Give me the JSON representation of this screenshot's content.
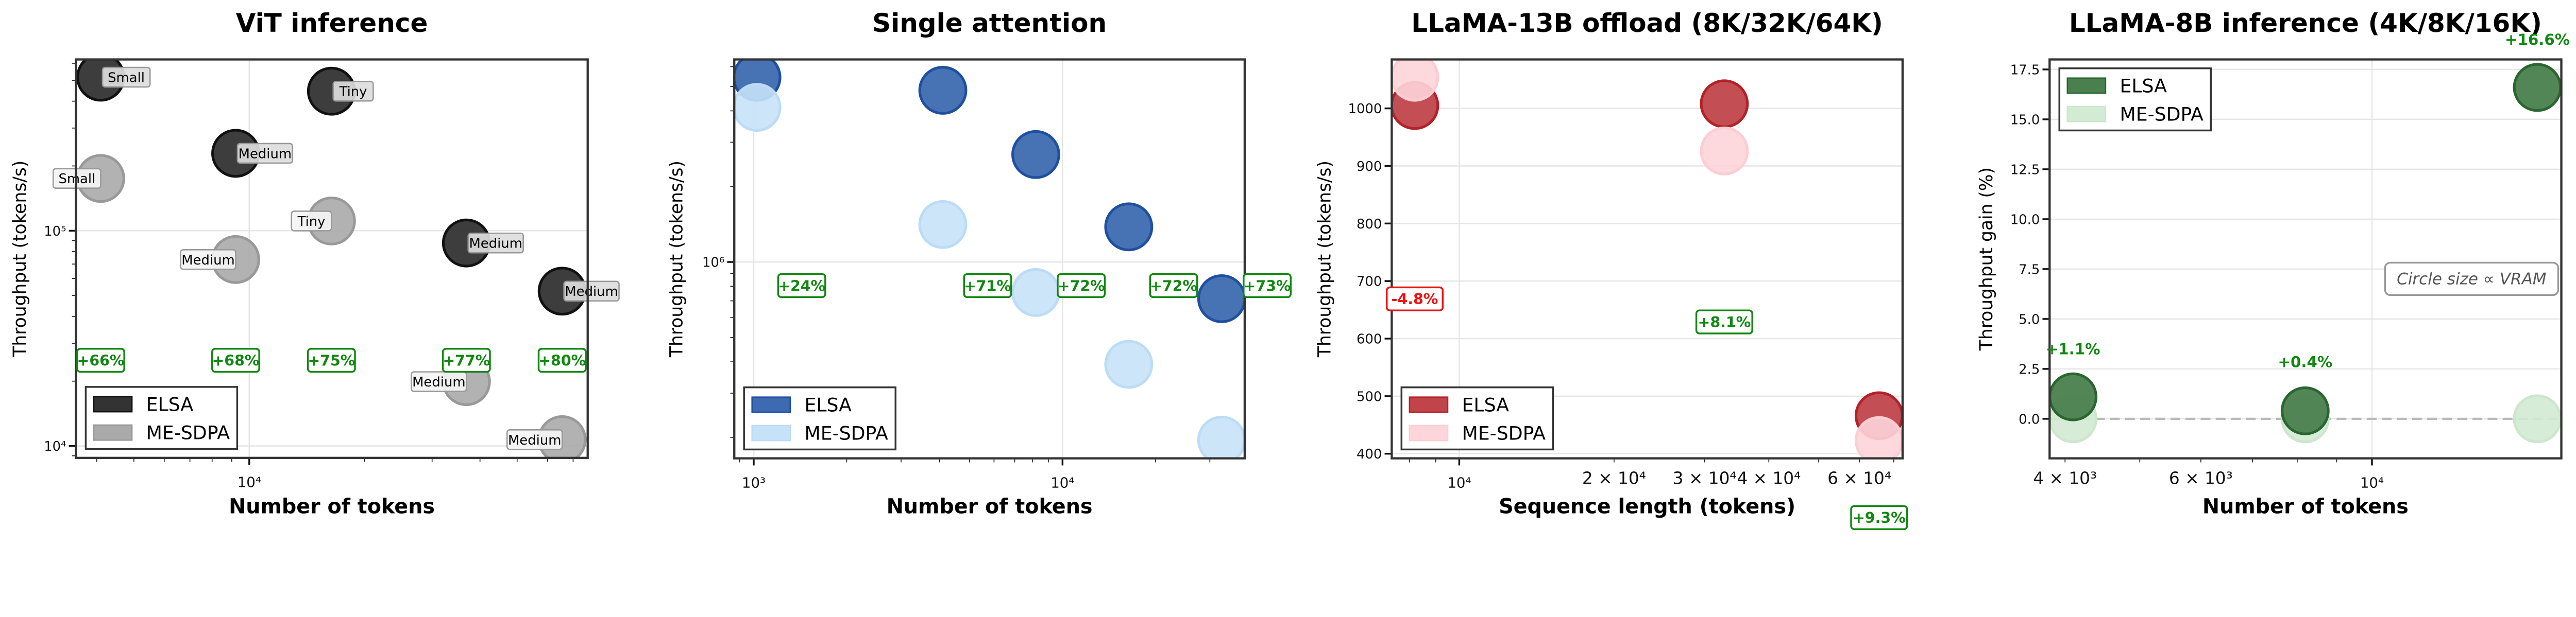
{
  "chart_data": [
    {
      "type": "scatter",
      "title": "ViT inference",
      "xlabel": "Number of tokens",
      "ylabel": "Throughput (tokens/s)",
      "xscale": "log",
      "yscale": "log",
      "xlim": [
        3530,
        76400
      ],
      "ylim": [
        8800,
        625000
      ],
      "grid": true,
      "legend": "lower-left",
      "xticks": [
        {
          "value": 10000,
          "label": "10⁴"
        }
      ],
      "yticks": [
        {
          "value": 10000,
          "label": "10⁴"
        },
        {
          "value": 100000,
          "label": "10⁵"
        }
      ],
      "series": [
        {
          "name": "ELSA",
          "color": "#333333",
          "edge": "#111111",
          "points": [
            {
              "x": 4096,
              "y": 517000,
              "label": "Small"
            },
            {
              "x": 16384,
              "y": 445000,
              "label": "Tiny"
            },
            {
              "x": 9216,
              "y": 229000,
              "label": "Medium"
            },
            {
              "x": 36864,
              "y": 87700,
              "label": "Medium"
            },
            {
              "x": 65536,
              "y": 52400,
              "label": "Medium"
            }
          ]
        },
        {
          "name": "ME-SDPA",
          "color": "#aaaaaa",
          "edge": "#999999",
          "points": [
            {
              "x": 4096,
              "y": 175000,
              "label": "Small"
            },
            {
              "x": 16384,
              "y": 111000,
              "label": "Tiny"
            },
            {
              "x": 9216,
              "y": 73500,
              "label": "Medium"
            },
            {
              "x": 36864,
              "y": 19900,
              "label": "Medium"
            },
            {
              "x": 65536,
              "y": 10700,
              "label": "Medium"
            }
          ]
        }
      ],
      "annotations": [
        {
          "text": "+66%",
          "x": 4096,
          "y": 25000,
          "color": "#118811",
          "boxed": true
        },
        {
          "text": "+68%",
          "x": 9216,
          "y": 25000,
          "color": "#118811",
          "boxed": true
        },
        {
          "text": "+75%",
          "x": 16384,
          "y": 25000,
          "color": "#118811",
          "boxed": true
        },
        {
          "text": "+77%",
          "x": 36864,
          "y": 25000,
          "color": "#118811",
          "boxed": true
        },
        {
          "text": "+80%",
          "x": 65536,
          "y": 25000,
          "color": "#118811",
          "boxed": true
        }
      ]
    },
    {
      "type": "scatter",
      "title": "Single attention",
      "xlabel": "Number of tokens",
      "ylabel": "Throughput (tokens/s)",
      "xscale": "log",
      "yscale": "log",
      "xlim": [
        865,
        38900
      ],
      "ylim": [
        165000,
        6410000
      ],
      "grid": true,
      "legend": "lower-left",
      "xticks": [
        {
          "value": 1000,
          "label": "10³"
        },
        {
          "value": 10000,
          "label": "10⁴"
        }
      ],
      "yticks": [
        {
          "value": 1000000,
          "label": "10⁶"
        }
      ],
      "series": [
        {
          "name": "ELSA",
          "color": "#3d6ab0",
          "edge": "#1f4fa0",
          "points": [
            {
              "x": 1024,
              "y": 5440000
            },
            {
              "x": 4096,
              "y": 4830000
            },
            {
              "x": 8192,
              "y": 2680000
            },
            {
              "x": 16384,
              "y": 1380000
            },
            {
              "x": 32768,
              "y": 714000
            }
          ]
        },
        {
          "name": "ME-SDPA",
          "color": "#c6e2f8",
          "edge": "#bcdcf6",
          "points": [
            {
              "x": 1024,
              "y": 4130000
            },
            {
              "x": 4096,
              "y": 1410000
            },
            {
              "x": 8192,
              "y": 756000
            },
            {
              "x": 16384,
              "y": 391000
            },
            {
              "x": 32768,
              "y": 195000
            }
          ]
        }
      ],
      "annotations": [
        {
          "text": "+24%",
          "x": 1430,
          "y": 805000,
          "color": "#118811",
          "boxed": true
        },
        {
          "text": "+71%",
          "x": 5720,
          "y": 805000,
          "color": "#118811",
          "boxed": true
        },
        {
          "text": "+72%",
          "x": 11500,
          "y": 805000,
          "color": "#118811",
          "boxed": true
        },
        {
          "text": "+72%",
          "x": 22900,
          "y": 805000,
          "color": "#118811",
          "boxed": true
        },
        {
          "text": "+73%",
          "x": 46000,
          "y": 805000,
          "color": "#118811",
          "boxed": true
        }
      ]
    },
    {
      "type": "scatter",
      "title": "LLaMA-13B offload (8K/32K/64K)",
      "xlabel": "Sequence length (tokens)",
      "ylabel": "Throughput (tokens/s)",
      "xscale": "log",
      "yscale": "linear",
      "xlim": [
        7390,
        72800
      ],
      "ylim": [
        392,
        1085
      ],
      "grid": true,
      "legend": "lower-left",
      "xticks": [
        {
          "value": 10000,
          "label": "10⁴"
        },
        {
          "value": 20000,
          "label": "2 × 10⁴",
          "minor": true
        },
        {
          "value": 30000,
          "label": "3 × 10⁴",
          "minor": true
        },
        {
          "value": 40000,
          "label": "4 × 10⁴",
          "minor": true
        },
        {
          "value": 60000,
          "label": "6 × 10⁴",
          "minor": true
        }
      ],
      "yticks": [
        {
          "value": 400,
          "label": "400"
        },
        {
          "value": 500,
          "label": "500"
        },
        {
          "value": 600,
          "label": "600"
        },
        {
          "value": 700,
          "label": "700"
        },
        {
          "value": 800,
          "label": "800"
        },
        {
          "value": 900,
          "label": "900"
        },
        {
          "value": 1000,
          "label": "1000"
        }
      ],
      "series": [
        {
          "name": "ELSA",
          "color": "#c0444a",
          "edge": "#b22228",
          "points": [
            {
              "x": 8192,
              "y": 1005
            },
            {
              "x": 32768,
              "y": 1008
            },
            {
              "x": 65536,
              "y": 466
            }
          ]
        },
        {
          "name": "ME-SDPA",
          "color": "#fdd5da",
          "edge": "#fccdd3",
          "points": [
            {
              "x": 8192,
              "y": 1054
            },
            {
              "x": 32768,
              "y": 926
            },
            {
              "x": 65536,
              "y": 423
            }
          ]
        }
      ],
      "annotations": [
        {
          "text": "-4.8%",
          "x": 8192,
          "y": 669,
          "color": "#ee1111",
          "boxed": true
        },
        {
          "text": "+8.1%",
          "x": 32768,
          "y": 629,
          "color": "#118811",
          "boxed": true
        },
        {
          "text": "+9.3%",
          "x": 65536,
          "y": 289,
          "color": "#118811",
          "boxed": true
        }
      ]
    },
    {
      "type": "scatter",
      "title": "LLaMA-8B inference (4K/8K/16K)",
      "xlabel": "Number of tokens",
      "ylabel": "Throughput gain (%)",
      "xscale": "log",
      "yscale": "linear",
      "xlim": [
        3820,
        17600
      ],
      "ylim": [
        -1.98,
        18.0
      ],
      "grid": true,
      "legend": "upper-left",
      "xticks": [
        {
          "value": 4000,
          "label": "4 × 10³",
          "minor": true
        },
        {
          "value": 6000,
          "label": "6 × 10³",
          "minor": true
        },
        {
          "value": 10000,
          "label": "10⁴"
        }
      ],
      "yticks": [
        {
          "value": 0,
          "label": "0.0"
        },
        {
          "value": 2.5,
          "label": "2.5"
        },
        {
          "value": 5,
          "label": "5.0"
        },
        {
          "value": 7.5,
          "label": "7.5"
        },
        {
          "value": 10,
          "label": "10.0"
        },
        {
          "value": 12.5,
          "label": "12.5"
        },
        {
          "value": 15,
          "label": "15.0"
        },
        {
          "value": 17.5,
          "label": "17.5"
        }
      ],
      "reference_line": {
        "y": 0,
        "style": "dashed",
        "color": "#bbbbbb"
      },
      "note": "Circle size ∝ VRAM",
      "series": [
        {
          "name": "ELSA",
          "color": "#4a7f4e",
          "edge": "#2a6630",
          "points": [
            {
              "x": 4096,
              "y": 1.1
            },
            {
              "x": 8192,
              "y": 0.4
            },
            {
              "x": 16384,
              "y": 16.6
            }
          ]
        },
        {
          "name": "ME-SDPA",
          "color": "#d3ead3",
          "edge": "#cde6cd",
          "points": [
            {
              "x": 4096,
              "y": 0
            },
            {
              "x": 8192,
              "y": 0
            },
            {
              "x": 16384,
              "y": 0
            }
          ]
        }
      ],
      "annotations": [
        {
          "text": "+1.1%",
          "x": 4096,
          "y": 3.5,
          "color": "#118811",
          "boxed": false
        },
        {
          "text": "+0.4%",
          "x": 8192,
          "y": 2.85,
          "color": "#118811",
          "boxed": false
        },
        {
          "text": "+16.6%",
          "x": 16384,
          "y": 19.0,
          "color": "#118811",
          "boxed": false
        }
      ]
    }
  ]
}
